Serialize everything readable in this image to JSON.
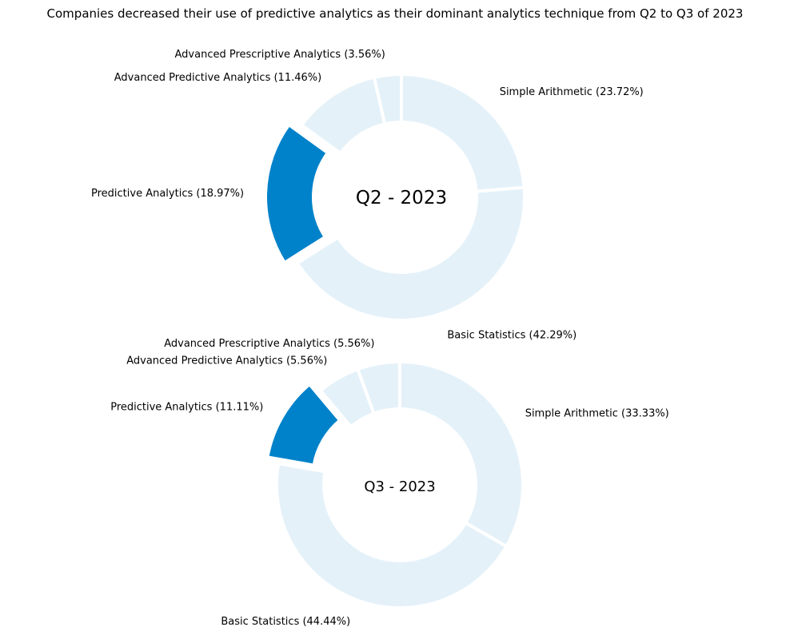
{
  "title": "Companies decreased their use of predictive analytics as their dominant analytics technique from Q2 to Q3 of 2023",
  "colors": {
    "highlight": "#0082ca",
    "muted": "#e4f1f9",
    "separator": "#ffffff"
  },
  "chart_data": [
    {
      "type": "pie",
      "variant": "donut",
      "center_label": "Q2 - 2023",
      "slices": [
        {
          "name": "Simple Arithmetic",
          "value": 23.72,
          "label": "Simple Arithmetic (23.72%)",
          "highlight": false
        },
        {
          "name": "Basic Statistics",
          "value": 42.29,
          "label": "Basic Statistics (42.29%)",
          "highlight": false
        },
        {
          "name": "Predictive Analytics",
          "value": 18.97,
          "label": "Predictive Analytics (18.97%)",
          "highlight": true
        },
        {
          "name": "Advanced Predictive Analytics",
          "value": 11.46,
          "label": "Advanced Predictive Analytics (11.46%)",
          "highlight": false
        },
        {
          "name": "Advanced Prescriptive Analytics",
          "value": 3.56,
          "label": "Advanced Prescriptive Analytics (3.56%)",
          "highlight": false
        }
      ]
    },
    {
      "type": "pie",
      "variant": "donut",
      "center_label": "Q3 - 2023",
      "slices": [
        {
          "name": "Simple Arithmetic",
          "value": 33.33,
          "label": "Simple Arithmetic (33.33%)",
          "highlight": false
        },
        {
          "name": "Basic Statistics",
          "value": 44.44,
          "label": "Basic Statistics (44.44%)",
          "highlight": false
        },
        {
          "name": "Predictive Analytics",
          "value": 11.11,
          "label": "Predictive Analytics (11.11%)",
          "highlight": true
        },
        {
          "name": "Advanced Predictive Analytics",
          "value": 5.56,
          "label": "Advanced Predictive Analytics (5.56%)",
          "highlight": false
        },
        {
          "name": "Advanced Prescriptive Analytics",
          "value": 5.56,
          "label": "Advanced Prescriptive Analytics (5.56%)",
          "highlight": false
        }
      ]
    }
  ]
}
